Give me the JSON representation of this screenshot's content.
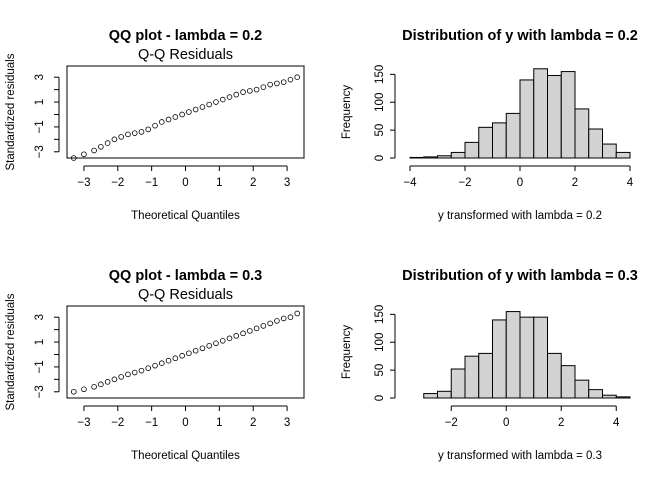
{
  "chart_data": [
    {
      "type": "scatter",
      "title": "QQ plot - lambda = 0.2",
      "subtitle": "Q-Q Residuals",
      "xlabel": "Theoretical Quantiles",
      "ylabel": "Standardized residuals",
      "xlim": [
        -3.5,
        3.5
      ],
      "ylim": [
        -3.5,
        3.9
      ],
      "xticks": [
        -3,
        -2,
        -1,
        0,
        1,
        2,
        3
      ],
      "yticks": [
        -3,
        -1,
        1,
        3
      ],
      "series": [
        {
          "x": [
            -3.3,
            -3.0,
            -2.7,
            -2.5,
            -2.3,
            -2.1,
            -1.9,
            -1.7,
            -1.5,
            -1.3,
            -1.1,
            -0.9,
            -0.7,
            -0.5,
            -0.3,
            -0.1,
            0.1,
            0.3,
            0.5,
            0.7,
            0.9,
            1.1,
            1.3,
            1.5,
            1.7,
            1.9,
            2.1,
            2.3,
            2.5,
            2.7,
            2.9,
            3.1,
            3.3
          ],
          "y": [
            -3.5,
            -3.2,
            -2.9,
            -2.6,
            -2.3,
            -2.0,
            -1.8,
            -1.6,
            -1.5,
            -1.4,
            -1.2,
            -0.9,
            -0.6,
            -0.4,
            -0.2,
            0.0,
            0.2,
            0.4,
            0.6,
            0.8,
            1.0,
            1.2,
            1.4,
            1.6,
            1.8,
            1.9,
            2.0,
            2.2,
            2.4,
            2.5,
            2.6,
            2.8,
            3.0
          ]
        }
      ]
    },
    {
      "type": "bar",
      "title": "Distribution of y with  lambda = 0.2",
      "xlabel": "y transformed with  lambda = 0.2",
      "ylabel": "Frequency",
      "xlim": [
        -4,
        4
      ],
      "ylim": [
        0,
        165
      ],
      "xticks": [
        -4,
        -2,
        0,
        2,
        4
      ],
      "yticks": [
        0,
        50,
        100,
        150
      ],
      "bin_edges": [
        -4.0,
        -3.5,
        -3.0,
        -2.5,
        -2.0,
        -1.5,
        -1.0,
        -0.5,
        0.0,
        0.5,
        1.0,
        1.5,
        2.0,
        2.5,
        3.0,
        3.5,
        4.0
      ],
      "values": [
        1,
        2,
        4,
        10,
        28,
        55,
        63,
        80,
        140,
        160,
        148,
        155,
        88,
        52,
        25,
        10,
        4
      ]
    },
    {
      "type": "scatter",
      "title": "QQ plot - lambda = 0.3",
      "subtitle": "Q-Q Residuals",
      "xlabel": "Theoretical Quantiles",
      "ylabel": "Standardized residuals",
      "xlim": [
        -3.5,
        3.5
      ],
      "ylim": [
        -3.5,
        3.9
      ],
      "xticks": [
        -3,
        -2,
        -1,
        0,
        1,
        2,
        3
      ],
      "yticks": [
        -3,
        -1,
        1,
        3
      ],
      "series": [
        {
          "x": [
            -3.3,
            -3.0,
            -2.7,
            -2.5,
            -2.3,
            -2.1,
            -1.9,
            -1.7,
            -1.5,
            -1.3,
            -1.1,
            -0.9,
            -0.7,
            -0.5,
            -0.3,
            -0.1,
            0.1,
            0.3,
            0.5,
            0.7,
            0.9,
            1.1,
            1.3,
            1.5,
            1.7,
            1.9,
            2.1,
            2.3,
            2.5,
            2.7,
            2.9,
            3.1,
            3.3
          ],
          "y": [
            -3.0,
            -2.8,
            -2.6,
            -2.4,
            -2.2,
            -2.0,
            -1.8,
            -1.6,
            -1.45,
            -1.3,
            -1.1,
            -0.9,
            -0.7,
            -0.5,
            -0.3,
            -0.1,
            0.1,
            0.3,
            0.5,
            0.7,
            0.9,
            1.1,
            1.3,
            1.5,
            1.7,
            1.9,
            2.1,
            2.3,
            2.5,
            2.7,
            2.9,
            3.0,
            3.3
          ]
        }
      ]
    },
    {
      "type": "bar",
      "title": "Distribution of y with  lambda = 0.3",
      "xlabel": "y transformed with  lambda = 0.3",
      "ylabel": "Frequency",
      "xlim": [
        -3.5,
        4.5
      ],
      "ylim": [
        0,
        165
      ],
      "xticks": [
        -2,
        0,
        2,
        4
      ],
      "yticks": [
        0,
        50,
        100,
        150
      ],
      "bin_edges": [
        -3.0,
        -2.5,
        -2.0,
        -1.5,
        -1.0,
        -0.5,
        0.0,
        0.5,
        1.0,
        1.5,
        2.0,
        2.5,
        3.0,
        3.5,
        4.0,
        4.5
      ],
      "values": [
        8,
        12,
        52,
        75,
        80,
        140,
        155,
        145,
        145,
        80,
        58,
        32,
        15,
        5,
        2
      ]
    }
  ]
}
